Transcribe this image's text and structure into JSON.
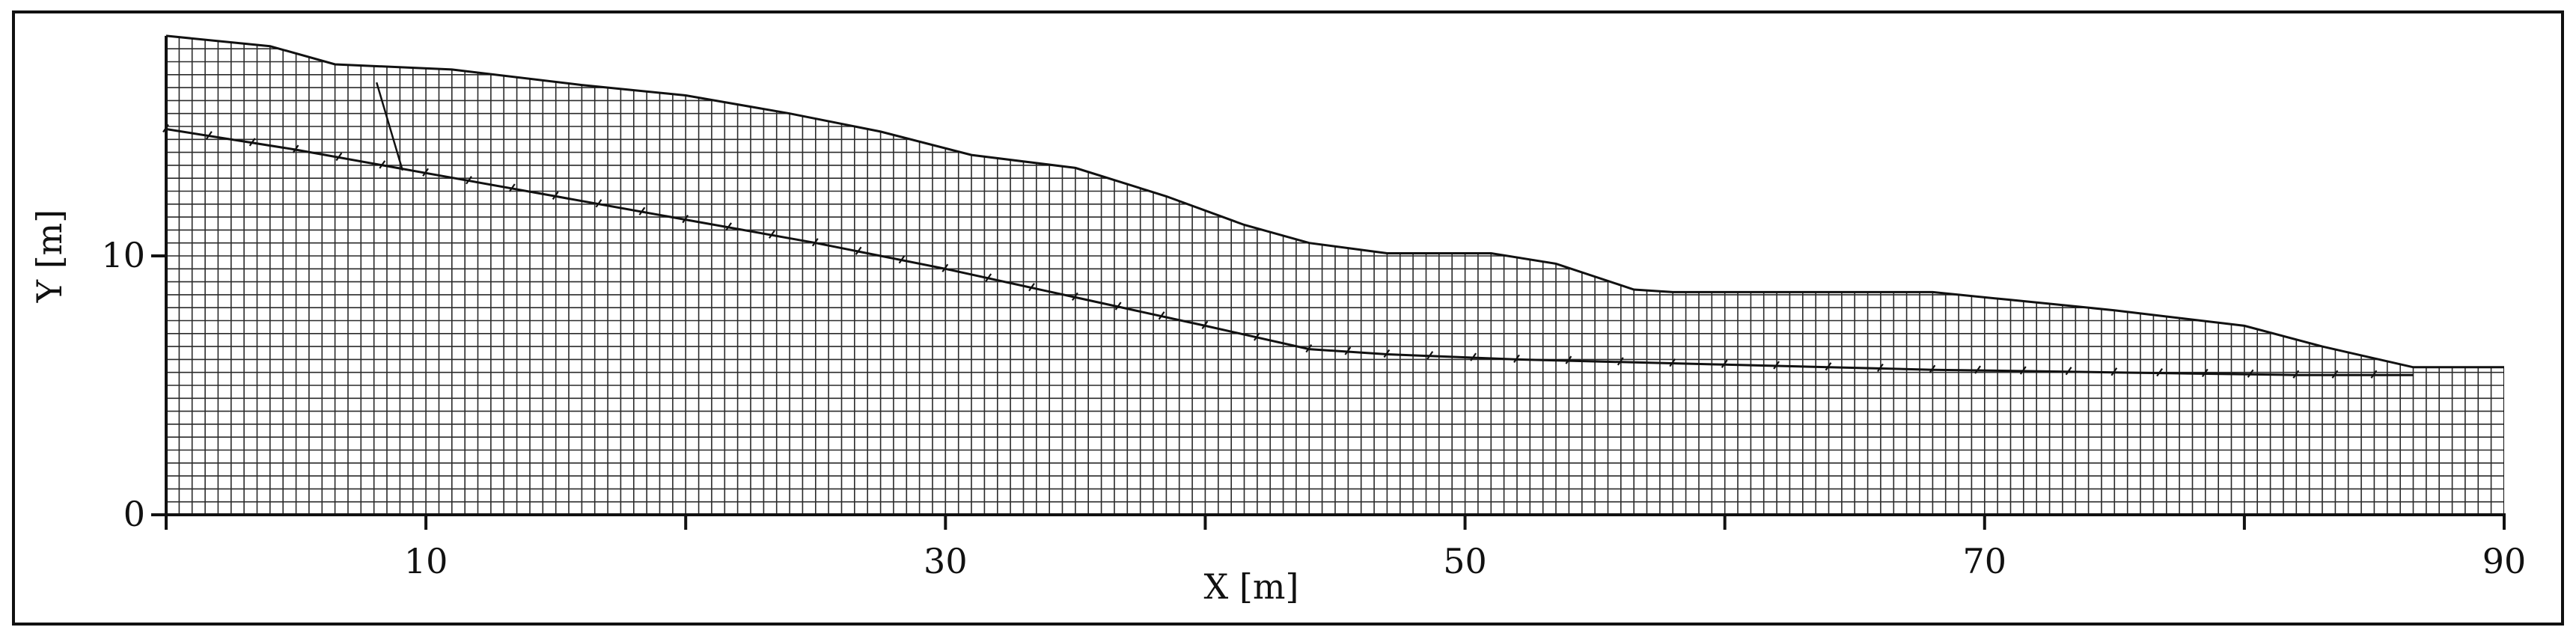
{
  "figure": {
    "xlabel": "X [m]",
    "ylabel": "Y [m]",
    "x_range": [
      0,
      90
    ],
    "y_range": [
      0,
      18.5
    ],
    "x_major_ticks": [
      0,
      10,
      20,
      30,
      40,
      50,
      60,
      70,
      80,
      90
    ],
    "x_tick_labels": [
      {
        "value": 10,
        "label": "10"
      },
      {
        "value": 30,
        "label": "30"
      },
      {
        "value": 50,
        "label": "50"
      },
      {
        "value": 70,
        "label": "70"
      },
      {
        "value": 90,
        "label": "90"
      }
    ],
    "y_tick_labels": [
      {
        "value": 0,
        "label": "0"
      },
      {
        "value": 10,
        "label": "10"
      }
    ],
    "grid_x_step_m": 0.5,
    "grid_y_step_m": 0.5,
    "ground_surface": [
      [
        0,
        18.5
      ],
      [
        4,
        18.1
      ],
      [
        6.5,
        17.4
      ],
      [
        11,
        17.2
      ],
      [
        16,
        16.6
      ],
      [
        20,
        16.2
      ],
      [
        24,
        15.5
      ],
      [
        27.5,
        14.8
      ],
      [
        31,
        13.9
      ],
      [
        35,
        13.4
      ],
      [
        38.5,
        12.3
      ],
      [
        41.5,
        11.2
      ],
      [
        44,
        10.5
      ],
      [
        47,
        10.1
      ],
      [
        51,
        10.1
      ],
      [
        53.5,
        9.7
      ],
      [
        56.5,
        8.7
      ],
      [
        58,
        8.6
      ],
      [
        68,
        8.6
      ],
      [
        71,
        8.3
      ],
      [
        75,
        7.9
      ],
      [
        80,
        7.3
      ],
      [
        83,
        6.5
      ],
      [
        86.5,
        5.7
      ],
      [
        90,
        5.7
      ]
    ],
    "slip_surface": [
      [
        0,
        14.9
      ],
      [
        5,
        14.1
      ],
      [
        10,
        13.2
      ],
      [
        15,
        12.3
      ],
      [
        20,
        11.4
      ],
      [
        25,
        10.5
      ],
      [
        30,
        9.5
      ],
      [
        35,
        8.4
      ],
      [
        40,
        7.3
      ],
      [
        44,
        6.4
      ],
      [
        47,
        6.2
      ],
      [
        52,
        6.0
      ],
      [
        60,
        5.8
      ],
      [
        68,
        5.6
      ],
      [
        75,
        5.5
      ],
      [
        82,
        5.4
      ],
      [
        86.5,
        5.4
      ]
    ],
    "scarp_line": [
      [
        8.1,
        16.7
      ],
      [
        9.1,
        13.3
      ]
    ]
  }
}
